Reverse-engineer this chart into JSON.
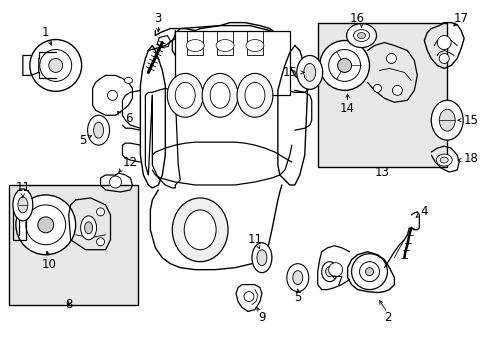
{
  "bg": "#ffffff",
  "lc": "#000000",
  "box_bg": "#e8e8e8",
  "fig_w": 4.89,
  "fig_h": 3.6,
  "dpi": 100,
  "parts": {
    "label_fontsize": 8.5,
    "arrow_lw": 0.6
  }
}
